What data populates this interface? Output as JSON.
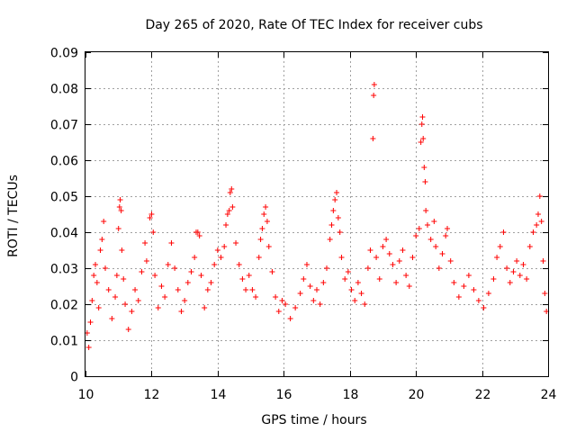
{
  "chart_data": {
    "type": "scatter",
    "title": "Day 265 of 2020, Rate Of TEC Index for receiver cubs",
    "xlabel": "GPS time / hours",
    "ylabel": "ROTI / TECUs",
    "xlim": [
      10,
      24
    ],
    "ylim": [
      0,
      0.09
    ],
    "x_ticks": [
      10,
      12,
      14,
      16,
      18,
      20,
      22,
      24
    ],
    "x_tick_labels": [
      "10",
      "12",
      "14",
      "16",
      "18",
      "20",
      "22",
      "24"
    ],
    "y_ticks": [
      0,
      0.01,
      0.02,
      0.03,
      0.04,
      0.05,
      0.06,
      0.07,
      0.08,
      0.09
    ],
    "y_tick_labels": [
      "0",
      "0.01",
      "0.02",
      "0.03",
      "0.04",
      "0.05",
      "0.06",
      "0.07",
      "0.08",
      "0.09"
    ],
    "grid": true,
    "marker": "+",
    "marker_color": "#ff0000",
    "series": [
      {
        "name": "ROTI",
        "points": [
          [
            10.05,
            0.012
          ],
          [
            10.1,
            0.008
          ],
          [
            10.15,
            0.015
          ],
          [
            10.2,
            0.021
          ],
          [
            10.25,
            0.028
          ],
          [
            10.3,
            0.031
          ],
          [
            10.35,
            0.026
          ],
          [
            10.4,
            0.019
          ],
          [
            10.45,
            0.035
          ],
          [
            10.5,
            0.038
          ],
          [
            10.55,
            0.043
          ],
          [
            10.6,
            0.03
          ],
          [
            10.7,
            0.024
          ],
          [
            10.8,
            0.016
          ],
          [
            10.9,
            0.022
          ],
          [
            10.95,
            0.028
          ],
          [
            11.0,
            0.041
          ],
          [
            11.03,
            0.047
          ],
          [
            11.05,
            0.049
          ],
          [
            11.08,
            0.046
          ],
          [
            11.1,
            0.035
          ],
          [
            11.15,
            0.027
          ],
          [
            11.2,
            0.02
          ],
          [
            11.3,
            0.013
          ],
          [
            11.4,
            0.018
          ],
          [
            11.5,
            0.024
          ],
          [
            11.6,
            0.021
          ],
          [
            11.7,
            0.029
          ],
          [
            11.8,
            0.037
          ],
          [
            11.85,
            0.032
          ],
          [
            11.95,
            0.044
          ],
          [
            12.0,
            0.045
          ],
          [
            12.05,
            0.04
          ],
          [
            12.1,
            0.028
          ],
          [
            12.2,
            0.019
          ],
          [
            12.3,
            0.025
          ],
          [
            12.4,
            0.022
          ],
          [
            12.5,
            0.031
          ],
          [
            12.6,
            0.037
          ],
          [
            12.7,
            0.03
          ],
          [
            12.8,
            0.024
          ],
          [
            12.9,
            0.018
          ],
          [
            13.0,
            0.021
          ],
          [
            13.1,
            0.026
          ],
          [
            13.2,
            0.029
          ],
          [
            13.3,
            0.033
          ],
          [
            13.35,
            0.04
          ],
          [
            13.4,
            0.04
          ],
          [
            13.45,
            0.039
          ],
          [
            13.5,
            0.028
          ],
          [
            13.6,
            0.019
          ],
          [
            13.7,
            0.024
          ],
          [
            13.8,
            0.026
          ],
          [
            13.9,
            0.031
          ],
          [
            14.0,
            0.035
          ],
          [
            14.1,
            0.033
          ],
          [
            14.2,
            0.036
          ],
          [
            14.25,
            0.042
          ],
          [
            14.3,
            0.045
          ],
          [
            14.35,
            0.046
          ],
          [
            14.38,
            0.051
          ],
          [
            14.42,
            0.052
          ],
          [
            14.45,
            0.047
          ],
          [
            14.55,
            0.037
          ],
          [
            14.65,
            0.031
          ],
          [
            14.75,
            0.027
          ],
          [
            14.85,
            0.024
          ],
          [
            14.95,
            0.028
          ],
          [
            15.05,
            0.024
          ],
          [
            15.15,
            0.022
          ],
          [
            15.25,
            0.033
          ],
          [
            15.3,
            0.038
          ],
          [
            15.35,
            0.041
          ],
          [
            15.4,
            0.045
          ],
          [
            15.45,
            0.047
          ],
          [
            15.5,
            0.043
          ],
          [
            15.55,
            0.036
          ],
          [
            15.65,
            0.029
          ],
          [
            15.75,
            0.022
          ],
          [
            15.85,
            0.018
          ],
          [
            15.95,
            0.021
          ],
          [
            16.05,
            0.02
          ],
          [
            16.2,
            0.016
          ],
          [
            16.35,
            0.019
          ],
          [
            16.5,
            0.023
          ],
          [
            16.6,
            0.027
          ],
          [
            16.7,
            0.031
          ],
          [
            16.8,
            0.025
          ],
          [
            16.9,
            0.021
          ],
          [
            17.0,
            0.024
          ],
          [
            17.1,
            0.02
          ],
          [
            17.2,
            0.026
          ],
          [
            17.3,
            0.03
          ],
          [
            17.4,
            0.038
          ],
          [
            17.45,
            0.042
          ],
          [
            17.5,
            0.046
          ],
          [
            17.55,
            0.049
          ],
          [
            17.6,
            0.051
          ],
          [
            17.65,
            0.044
          ],
          [
            17.7,
            0.04
          ],
          [
            17.75,
            0.033
          ],
          [
            17.85,
            0.027
          ],
          [
            17.95,
            0.029
          ],
          [
            18.05,
            0.024
          ],
          [
            18.15,
            0.021
          ],
          [
            18.25,
            0.026
          ],
          [
            18.35,
            0.023
          ],
          [
            18.45,
            0.02
          ],
          [
            18.55,
            0.03
          ],
          [
            18.62,
            0.035
          ],
          [
            18.7,
            0.066
          ],
          [
            18.72,
            0.078
          ],
          [
            18.74,
            0.081
          ],
          [
            18.8,
            0.033
          ],
          [
            18.9,
            0.027
          ],
          [
            19.0,
            0.036
          ],
          [
            19.1,
            0.038
          ],
          [
            19.2,
            0.034
          ],
          [
            19.3,
            0.031
          ],
          [
            19.4,
            0.026
          ],
          [
            19.5,
            0.032
          ],
          [
            19.6,
            0.035
          ],
          [
            19.7,
            0.028
          ],
          [
            19.8,
            0.025
          ],
          [
            19.9,
            0.033
          ],
          [
            20.0,
            0.039
          ],
          [
            20.1,
            0.041
          ],
          [
            20.15,
            0.065
          ],
          [
            20.18,
            0.07
          ],
          [
            20.2,
            0.072
          ],
          [
            20.22,
            0.066
          ],
          [
            20.25,
            0.058
          ],
          [
            20.28,
            0.054
          ],
          [
            20.3,
            0.046
          ],
          [
            20.35,
            0.042
          ],
          [
            20.45,
            0.038
          ],
          [
            20.55,
            0.043
          ],
          [
            20.6,
            0.036
          ],
          [
            20.7,
            0.03
          ],
          [
            20.8,
            0.034
          ],
          [
            20.9,
            0.039
          ],
          [
            20.95,
            0.041
          ],
          [
            21.05,
            0.032
          ],
          [
            21.15,
            0.026
          ],
          [
            21.3,
            0.022
          ],
          [
            21.45,
            0.025
          ],
          [
            21.6,
            0.028
          ],
          [
            21.75,
            0.024
          ],
          [
            21.9,
            0.021
          ],
          [
            22.05,
            0.019
          ],
          [
            22.2,
            0.023
          ],
          [
            22.35,
            0.027
          ],
          [
            22.45,
            0.033
          ],
          [
            22.55,
            0.036
          ],
          [
            22.65,
            0.04
          ],
          [
            22.75,
            0.03
          ],
          [
            22.85,
            0.026
          ],
          [
            22.95,
            0.029
          ],
          [
            23.05,
            0.032
          ],
          [
            23.15,
            0.028
          ],
          [
            23.25,
            0.031
          ],
          [
            23.35,
            0.027
          ],
          [
            23.45,
            0.036
          ],
          [
            23.55,
            0.04
          ],
          [
            23.65,
            0.042
          ],
          [
            23.7,
            0.045
          ],
          [
            23.75,
            0.05
          ],
          [
            23.8,
            0.043
          ],
          [
            23.85,
            0.032
          ],
          [
            23.9,
            0.023
          ],
          [
            23.95,
            0.018
          ]
        ]
      }
    ]
  }
}
